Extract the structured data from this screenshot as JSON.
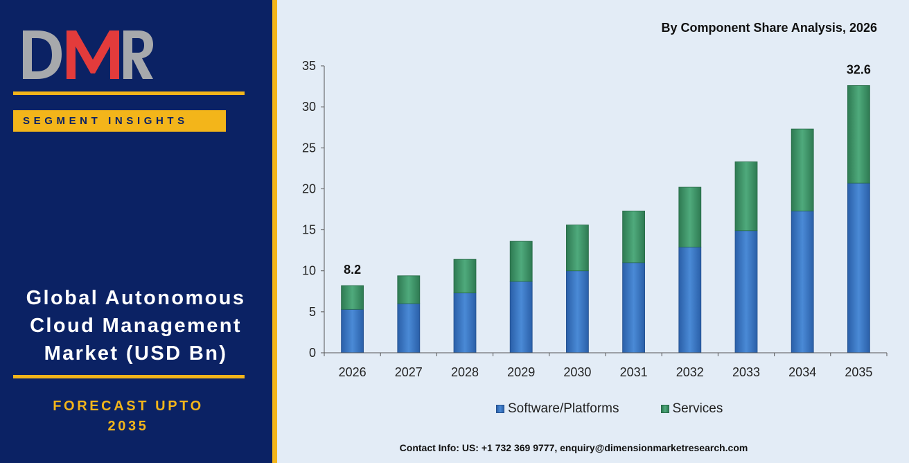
{
  "brand": {
    "logo_text": "DMR"
  },
  "sidebar": {
    "badge": "SEGMENT INSIGHTS",
    "title_lines": [
      "Global Autonomous",
      "Cloud Management",
      "Market (USD Bn)"
    ],
    "forecast_lines": [
      "FORECAST UPTO",
      "2035"
    ]
  },
  "colors": {
    "panel": "#0b2264",
    "accent": "#f3b51a",
    "software": "#3a78c6",
    "services": "#3f9a6c",
    "logo_red": "#e33b3b",
    "logo_gray": "#a7a9ac"
  },
  "chart_data": {
    "type": "bar",
    "stacked": true,
    "title": "By Component Share Analysis, 2026",
    "categories": [
      "2026",
      "2027",
      "2028",
      "2029",
      "2030",
      "2031",
      "2032",
      "2033",
      "2034",
      "2035"
    ],
    "series": [
      {
        "name": "Software/Platforms",
        "color": "#3a78c6",
        "values": [
          5.3,
          6.0,
          7.3,
          8.7,
          10.0,
          11.0,
          12.9,
          14.9,
          17.3,
          20.7
        ]
      },
      {
        "name": "Services",
        "color": "#3f9a6c",
        "values": [
          2.9,
          3.4,
          4.1,
          4.9,
          5.6,
          6.3,
          7.3,
          8.4,
          10.0,
          11.9
        ]
      }
    ],
    "data_labels": [
      {
        "category": "2026",
        "text": "8.2"
      },
      {
        "category": "2035",
        "text": "32.6"
      }
    ],
    "ylim": [
      0,
      35
    ],
    "yticks": [
      0,
      5,
      10,
      15,
      20,
      25,
      30,
      35
    ],
    "xlabel": "",
    "ylabel": "",
    "grid": false,
    "legend_position": "bottom"
  },
  "footer": {
    "contact": "Contact Info: US: +1 732 369 9777, enquiry@dimensionmarketresearch.com"
  }
}
